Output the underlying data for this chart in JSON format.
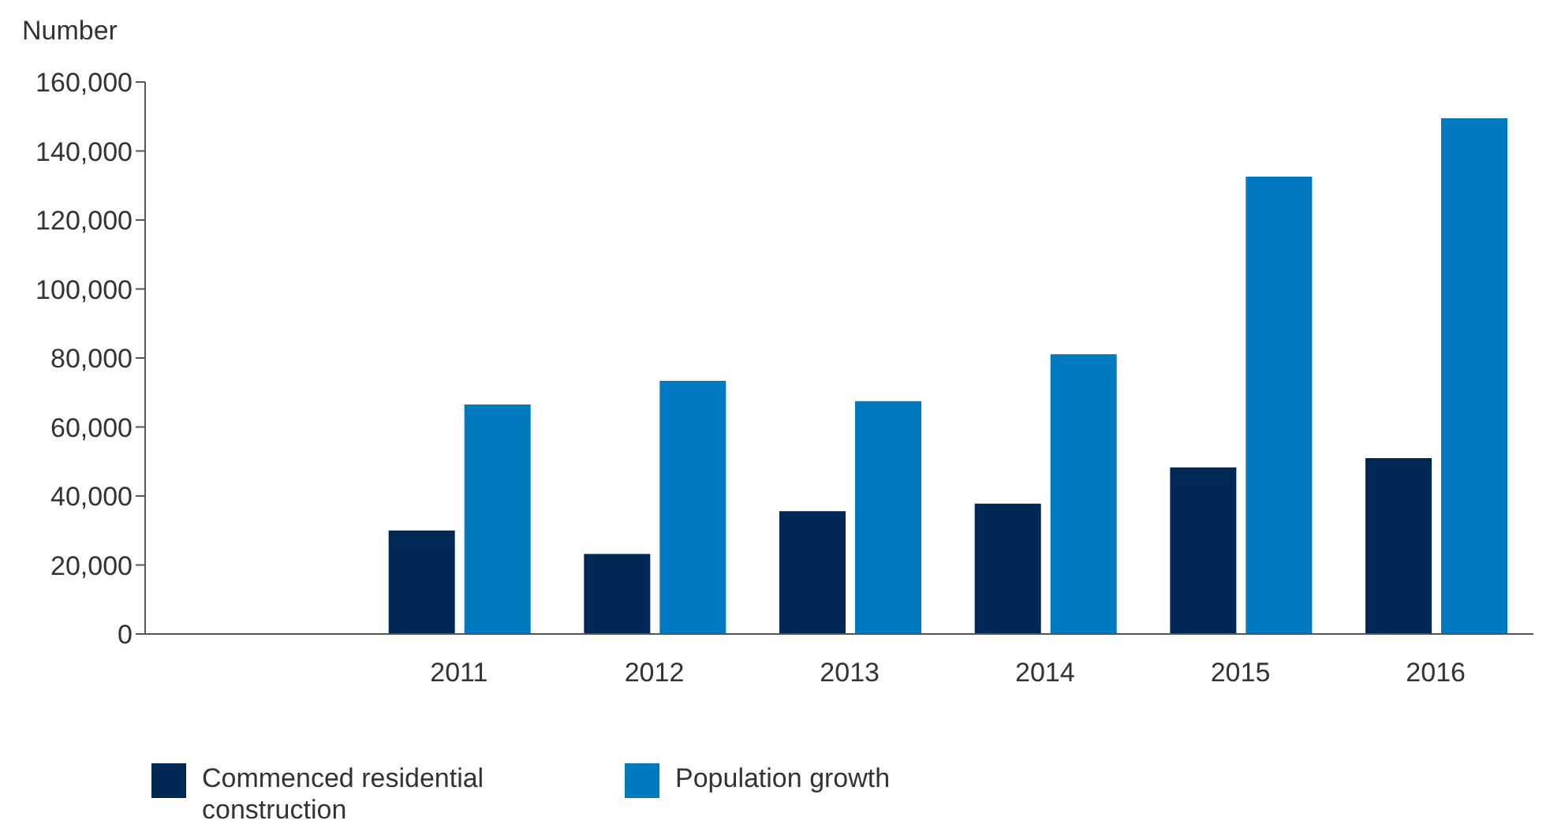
{
  "chart_data": {
    "type": "bar",
    "ylabel": "Number",
    "categories": [
      "2011",
      "2012",
      "2013",
      "2014",
      "2015",
      "2016"
    ],
    "series": [
      {
        "name": "Commenced residential construction",
        "color": "#002855",
        "values": [
          30000,
          23200,
          35600,
          37800,
          48300,
          51000
        ]
      },
      {
        "name": "Population growth",
        "color": "#0079c1",
        "values": [
          66500,
          73400,
          67500,
          81100,
          132600,
          149500
        ]
      }
    ],
    "ylim": [
      0,
      160000
    ],
    "yticks": [
      0,
      {
        "value": 20000,
        "label": "20,000"
      },
      {
        "value": 40000,
        "label": "40,000"
      },
      {
        "value": 60000,
        "label": "60,000"
      },
      {
        "value": 80000,
        "label": "80,000"
      },
      {
        "value": 100000,
        "label": "100,000"
      },
      {
        "value": 120000,
        "label": "120,000"
      },
      {
        "value": 140000,
        "label": "140,000"
      },
      {
        "value": 160000,
        "label": "160,000"
      }
    ],
    "grid": false,
    "legend": "bottom left"
  }
}
